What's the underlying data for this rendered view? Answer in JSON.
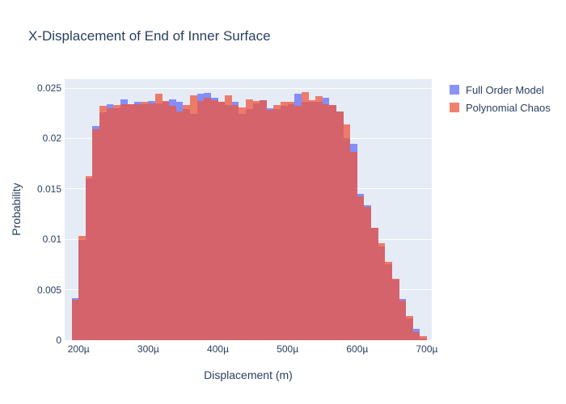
{
  "title": "X-Displacement of End of Inner Surface",
  "legend": {
    "items": [
      {
        "label": "Full Order Model",
        "color": "#636EFA"
      },
      {
        "label": "Polynomial Chaos",
        "color": "#EF553B"
      }
    ]
  },
  "colors": {
    "text": "#2a3f5f",
    "plot_background": "#E5ECF6",
    "gridline": "#ffffff",
    "series_blue": "#636EFA",
    "series_red": "#EF553B",
    "bar_opacity": 0.75
  },
  "chart_data": {
    "type": "bar",
    "subtype": "overlaid-histogram",
    "title": "X-Displacement of End of Inner Surface",
    "xlabel": "Displacement (m)",
    "ylabel": "Probability",
    "x_unit": "micrometers",
    "bin_width": 10,
    "bin_starts": [
      190,
      200,
      210,
      220,
      230,
      240,
      250,
      260,
      270,
      280,
      290,
      300,
      310,
      320,
      330,
      340,
      350,
      360,
      370,
      380,
      390,
      400,
      410,
      420,
      430,
      440,
      450,
      460,
      470,
      480,
      490,
      500,
      510,
      520,
      530,
      540,
      550,
      560,
      570,
      580,
      590,
      600,
      610,
      620,
      630,
      640,
      650,
      660,
      670,
      680,
      690
    ],
    "series": [
      {
        "name": "Full Order Model",
        "color": "#636EFA",
        "opacity": 0.75,
        "values": [
          0.0042,
          0.0099,
          0.016,
          0.0212,
          0.0226,
          0.0234,
          0.023,
          0.0239,
          0.0234,
          0.0236,
          0.0234,
          0.0237,
          0.0235,
          0.0236,
          0.0239,
          0.0236,
          0.0229,
          0.0224,
          0.0244,
          0.0245,
          0.024,
          0.0236,
          0.0233,
          0.0236,
          0.0224,
          0.0229,
          0.0235,
          0.0238,
          0.023,
          0.0229,
          0.0232,
          0.0234,
          0.0244,
          0.0236,
          0.0236,
          0.0236,
          0.024,
          0.0233,
          0.0227,
          0.02,
          0.0195,
          0.0145,
          0.0134,
          0.0111,
          0.0093,
          0.0075,
          0.006,
          0.0041,
          0.0022,
          0.0011,
          0.0002
        ]
      },
      {
        "name": "Polynomial Chaos",
        "color": "#EF553B",
        "opacity": 0.75,
        "values": [
          0.004,
          0.0103,
          0.0163,
          0.0209,
          0.0232,
          0.023,
          0.0233,
          0.0234,
          0.0234,
          0.0234,
          0.0236,
          0.0235,
          0.0244,
          0.0237,
          0.0232,
          0.0227,
          0.0233,
          0.0243,
          0.0237,
          0.024,
          0.0238,
          0.0236,
          0.0243,
          0.0233,
          0.0231,
          0.0239,
          0.0237,
          0.0238,
          0.0228,
          0.0233,
          0.0236,
          0.0236,
          0.0232,
          0.0246,
          0.0238,
          0.0242,
          0.0234,
          0.0233,
          0.0227,
          0.0214,
          0.0187,
          0.0143,
          0.0132,
          0.0111,
          0.0096,
          0.0078,
          0.0061,
          0.0039,
          0.0024,
          0.0008,
          0.0004
        ]
      }
    ],
    "xlim": [
      180,
      707
    ],
    "ylim": [
      0,
      0.025881
    ],
    "x_ticks": [
      {
        "value": 200,
        "label": "200µ"
      },
      {
        "value": 300,
        "label": "300µ"
      },
      {
        "value": 400,
        "label": "400µ"
      },
      {
        "value": 500,
        "label": "500µ"
      },
      {
        "value": 600,
        "label": "600µ"
      },
      {
        "value": 700,
        "label": "700µ"
      }
    ],
    "y_ticks": [
      {
        "value": 0,
        "label": "0"
      },
      {
        "value": 0.005,
        "label": "0.005"
      },
      {
        "value": 0.01,
        "label": "0.01"
      },
      {
        "value": 0.015,
        "label": "0.015"
      },
      {
        "value": 0.02,
        "label": "0.02"
      },
      {
        "value": 0.025,
        "label": "0.025"
      }
    ],
    "grid": "horizontal-only",
    "legend_position": "top-right-outside",
    "barmode": "overlay"
  }
}
